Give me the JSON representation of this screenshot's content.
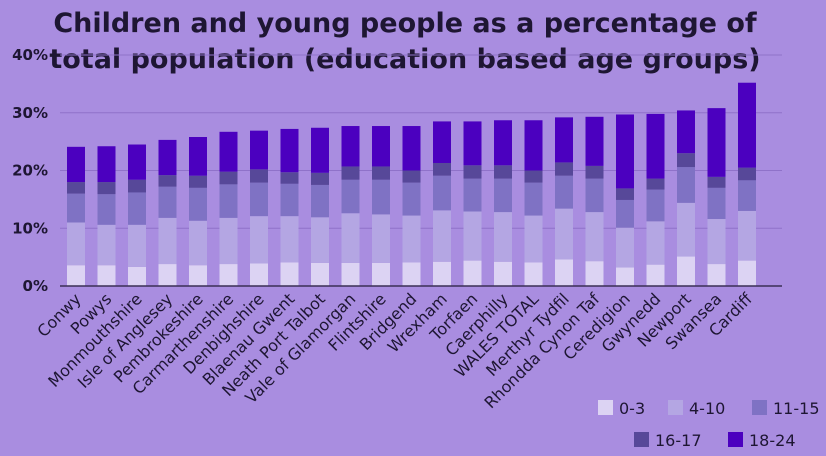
{
  "chart_data": {
    "type": "bar",
    "stacked": true,
    "title_lines": [
      "Children and young people as a percentage of",
      "total population (education based age groups)"
    ],
    "ylim": [
      0,
      40
    ],
    "yticks": [
      "0%",
      "10%",
      "20%",
      "30%",
      "40%"
    ],
    "ytick_values": [
      0,
      10,
      20,
      30,
      40
    ],
    "grid": true,
    "legend_position": "bottom-right",
    "categories": [
      "Conwy",
      "Powys",
      "Monmouthshire",
      "Isle of Anglesey",
      "Pembrokeshire",
      "Carmarthenshire",
      "Denbighshire",
      "Blaenau Gwent",
      "Neath Port Talbot",
      "Vale of Glamorgan",
      "Flintshire",
      "Bridgend",
      "Wrexham",
      "Torfaen",
      "Caerphilly",
      "WALES TOTAL",
      "Merthyr Tydfil",
      "Rhondda Cynon Taf",
      "Ceredigion",
      "Gwynedd",
      "Newport",
      "Swansea",
      "Cardiff"
    ],
    "series": [
      {
        "name": "0-3",
        "color": "#dcd3f3",
        "values": [
          3.6,
          3.6,
          3.3,
          3.8,
          3.6,
          3.8,
          3.9,
          4.1,
          4.0,
          4.0,
          4.0,
          4.1,
          4.2,
          4.4,
          4.2,
          4.1,
          4.6,
          4.3,
          3.2,
          3.7,
          5.1,
          3.8,
          4.4
        ]
      },
      {
        "name": "4-10",
        "color": "#b4a6e3",
        "values": [
          7.4,
          7.0,
          7.3,
          8.0,
          7.7,
          8.0,
          8.2,
          8.0,
          7.9,
          8.6,
          8.4,
          8.1,
          8.9,
          8.5,
          8.6,
          8.1,
          8.8,
          8.5,
          6.9,
          7.5,
          9.3,
          7.8,
          8.6
        ]
      },
      {
        "name": "11-15",
        "color": "#7f72c4",
        "values": [
          5.0,
          5.3,
          5.6,
          5.4,
          5.7,
          5.8,
          5.8,
          5.6,
          5.6,
          5.8,
          6.0,
          5.7,
          6.0,
          5.7,
          5.8,
          5.7,
          5.7,
          5.8,
          4.8,
          5.5,
          6.2,
          5.4,
          5.3
        ]
      },
      {
        "name": "16-17",
        "color": "#574899",
        "values": [
          2.0,
          2.1,
          2.2,
          2.0,
          2.1,
          2.2,
          2.3,
          2.0,
          2.1,
          2.3,
          2.3,
          2.1,
          2.2,
          2.3,
          2.3,
          2.1,
          2.3,
          2.2,
          2.0,
          1.9,
          2.4,
          1.9,
          2.2
        ]
      },
      {
        "name": "18-24",
        "color": "#4b00bf",
        "values": [
          6.1,
          6.2,
          6.1,
          6.1,
          6.7,
          6.9,
          6.7,
          7.5,
          7.8,
          7.0,
          7.0,
          7.7,
          7.2,
          7.6,
          7.8,
          8.7,
          7.8,
          8.5,
          12.8,
          11.2,
          7.4,
          11.9,
          14.7
        ]
      }
    ]
  }
}
